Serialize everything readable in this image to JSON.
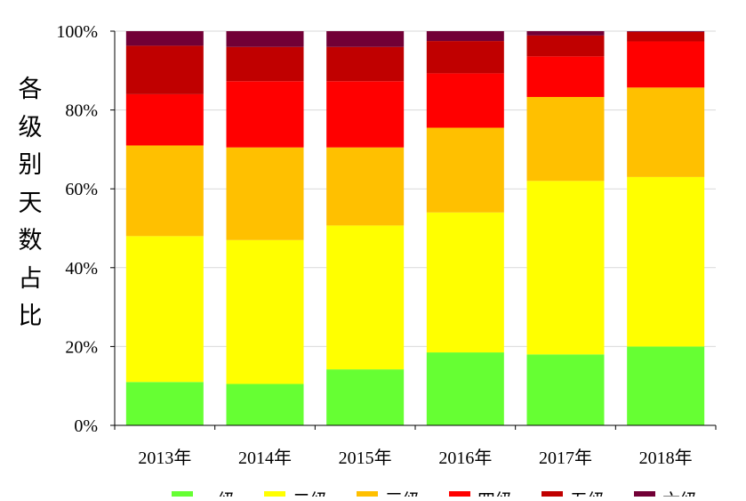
{
  "chart_data": {
    "type": "bar",
    "stacked": true,
    "percent": true,
    "categories": [
      "2013年",
      "2014年",
      "2015年",
      "2016年",
      "2017年",
      "2018年"
    ],
    "ylabel": "各级别天数占比",
    "xlabel": "",
    "ylim": [
      0,
      100
    ],
    "y_ticks": [
      "0%",
      "20%",
      "40%",
      "60%",
      "80%",
      "100%"
    ],
    "grid": true,
    "legend": {
      "placement": "bottom",
      "entries": [
        "一级",
        "二级",
        "三级",
        "四级",
        "五级",
        "六级"
      ]
    },
    "series": [
      {
        "color": "#66ff33",
        "values": [
          11,
          10.5,
          14.2,
          18.5,
          18,
          20
        ]
      },
      {
        "color": "#ffff00",
        "values": [
          37,
          36.5,
          36.5,
          35.5,
          44,
          43
        ]
      },
      {
        "color": "#ffc000",
        "values": [
          23,
          23.5,
          19.8,
          21.5,
          21.3,
          22.7
        ]
      },
      {
        "color": "#ff0000",
        "values": [
          13,
          16.8,
          16.8,
          13.8,
          10.3,
          11.7
        ]
      },
      {
        "color": "#c00000",
        "values": [
          12.3,
          8.7,
          8.7,
          8.2,
          5.3,
          2.4
        ]
      },
      {
        "color": "#720036",
        "values": [
          3.7,
          4,
          4,
          2.5,
          1.1,
          0.2
        ]
      }
    ]
  }
}
